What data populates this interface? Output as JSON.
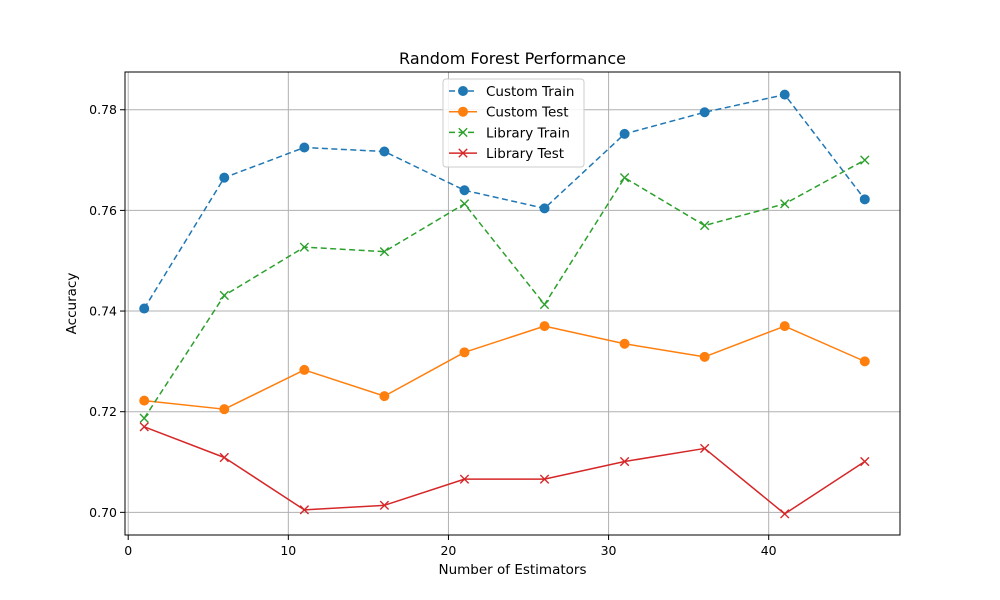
{
  "chart_data": {
    "type": "line",
    "title": "Random Forest Performance",
    "xlabel": "Number of Estimators",
    "ylabel": "Accuracy",
    "xlim": [
      -0.2,
      48.2
    ],
    "ylim": [
      0.6955,
      0.7875
    ],
    "x_ticks": [
      0,
      10,
      20,
      30,
      40
    ],
    "y_ticks": [
      0.7,
      0.72,
      0.74,
      0.76,
      0.78
    ],
    "x_tick_labels": [
      "0",
      "10",
      "20",
      "30",
      "40"
    ],
    "y_tick_labels": [
      "0.70",
      "0.72",
      "0.74",
      "0.76",
      "0.78"
    ],
    "grid": true,
    "legend_position": "top-center",
    "x": [
      1,
      6,
      11,
      16,
      21,
      26,
      31,
      36,
      41,
      46
    ],
    "series": [
      {
        "name": "Custom Train",
        "color": "#1f77b4",
        "line_style": "dashed",
        "marker": "circle",
        "values": [
          0.7405,
          0.7665,
          0.7725,
          0.7717,
          0.764,
          0.7604,
          0.7752,
          0.7795,
          0.783,
          0.7622
        ]
      },
      {
        "name": "Custom Test",
        "color": "#ff7f0e",
        "line_style": "solid",
        "marker": "circle",
        "values": [
          0.7222,
          0.7205,
          0.7283,
          0.7231,
          0.7318,
          0.737,
          0.7335,
          0.7309,
          0.737,
          0.73
        ]
      },
      {
        "name": "Library Train",
        "color": "#2ca02c",
        "line_style": "dashed",
        "marker": "x",
        "values": [
          0.7187,
          0.7431,
          0.7527,
          0.7518,
          0.7613,
          0.7413,
          0.7665,
          0.757,
          0.7613,
          0.77
        ]
      },
      {
        "name": "Library Test",
        "color": "#d62728",
        "line_style": "solid",
        "marker": "x",
        "values": [
          0.717,
          0.7109,
          0.7005,
          0.7014,
          0.7066,
          0.7066,
          0.7101,
          0.7127,
          0.6997,
          0.7101
        ]
      }
    ]
  }
}
